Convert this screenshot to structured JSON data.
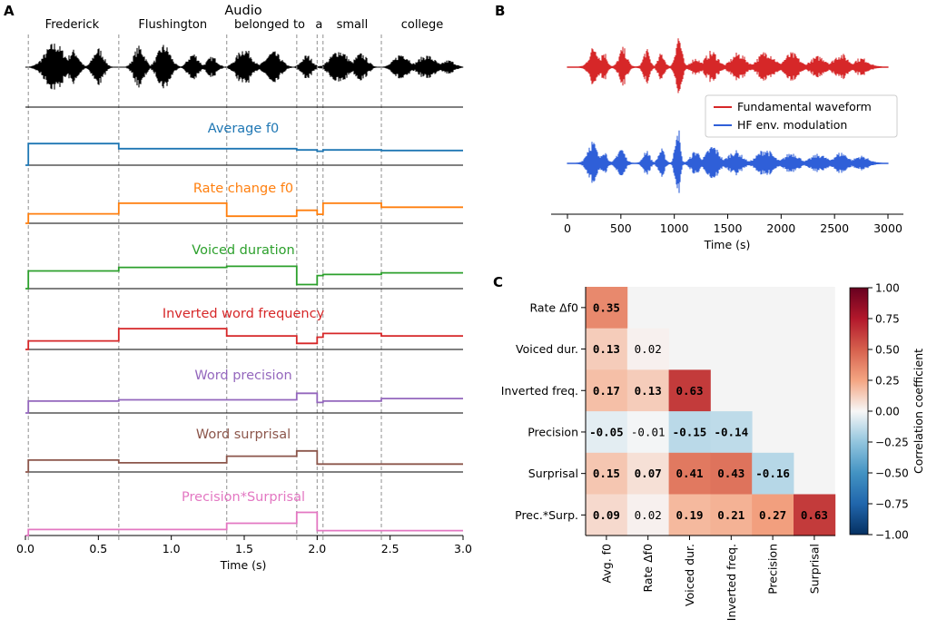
{
  "panels": {
    "a": "A",
    "b": "B",
    "c": "C"
  },
  "chart_data": [
    {
      "id": "panel-a",
      "type": "line",
      "title": "Audio",
      "xlabel": "Time (s)",
      "xlim": [
        0,
        3.0
      ],
      "xticks": [
        "0.0",
        "0.5",
        "1.0",
        "1.5",
        "2.0",
        "2.5",
        "3.0"
      ],
      "xtick_values": [
        0,
        0.5,
        1.0,
        1.5,
        2.0,
        2.5,
        3.0
      ],
      "boundaries": [
        0.02,
        0.64,
        1.38,
        1.86,
        2.0,
        2.04,
        2.44
      ],
      "words": [
        {
          "text": "Frederick",
          "t": 0.32
        },
        {
          "text": "Flushington",
          "t": 1.01
        },
        {
          "text": "belonged",
          "t": 1.62
        },
        {
          "text": "to",
          "t": 1.92
        },
        {
          "text": "a",
          "t": 2.0
        },
        {
          "text": "small",
          "t": 2.24
        },
        {
          "text": "college",
          "t": 2.72
        }
      ],
      "series": [
        {
          "name": "Average f0",
          "color": "#1f77b4",
          "steps": [
            0.0,
            0.85,
            0.65,
            0.65,
            0.6,
            0.55,
            0.6,
            0.58
          ]
        },
        {
          "name": "Rate change f0",
          "color": "#ff7f0e",
          "steps": [
            0.0,
            0.4,
            0.85,
            0.3,
            0.55,
            0.38,
            0.85,
            0.68
          ]
        },
        {
          "name": "Voiced duration",
          "color": "#2ca02c",
          "steps": [
            0.0,
            0.65,
            0.78,
            0.82,
            0.15,
            0.48,
            0.52,
            0.58
          ]
        },
        {
          "name": "Inverted word frequency",
          "color": "#d62728",
          "steps": [
            0.0,
            0.35,
            0.85,
            0.55,
            0.25,
            0.5,
            0.65,
            0.55
          ]
        },
        {
          "name": "Word precision",
          "color": "#9467bd",
          "steps": [
            0.0,
            0.45,
            0.5,
            0.5,
            0.75,
            0.4,
            0.45,
            0.55
          ]
        },
        {
          "name": "Word surprisal",
          "color": "#8c564b",
          "steps": [
            0.0,
            0.45,
            0.35,
            0.6,
            0.8,
            0.3,
            0.3,
            0.3
          ]
        },
        {
          "name": "Precision*Surprisal",
          "color": "#e377c2",
          "steps": [
            0.0,
            0.22,
            0.22,
            0.45,
            0.85,
            0.18,
            0.18,
            0.18
          ]
        }
      ]
    },
    {
      "id": "panel-b",
      "type": "line",
      "xlabel": "Time (s)",
      "xlim": [
        0,
        3000
      ],
      "xticks": [
        "0",
        "500",
        "1000",
        "1500",
        "2000",
        "2500",
        "3000"
      ],
      "xtick_values": [
        0,
        500,
        1000,
        1500,
        2000,
        2500,
        3000
      ],
      "series": [
        {
          "name": "Fundamental waveform",
          "color": "#d62728"
        },
        {
          "name": "HF env. modulation",
          "color": "#2f5fd8"
        }
      ],
      "legend": "right"
    },
    {
      "id": "panel-c",
      "type": "heatmap",
      "rows": [
        "Rate Δf0",
        "Voiced dur.",
        "Inverted freq.",
        "Precision",
        "Surprisal",
        "Prec.*Surp."
      ],
      "columns": [
        "Avg. f0",
        "Rate Δf0",
        "Voiced dur.",
        "Inverted freq.",
        "Precision",
        "Surprisal"
      ],
      "values": [
        [
          0.35,
          null,
          null,
          null,
          null,
          null
        ],
        [
          0.13,
          0.02,
          null,
          null,
          null,
          null
        ],
        [
          0.17,
          0.13,
          0.63,
          null,
          null,
          null
        ],
        [
          -0.05,
          -0.01,
          -0.15,
          -0.14,
          null,
          null
        ],
        [
          0.15,
          0.07,
          0.41,
          0.43,
          -0.16,
          null
        ],
        [
          0.09,
          0.02,
          0.19,
          0.21,
          0.27,
          0.63
        ]
      ],
      "labels": [
        [
          "0.35",
          "",
          "",
          "",
          "",
          ""
        ],
        [
          "0.13",
          "0.02",
          "",
          "",
          "",
          ""
        ],
        [
          "0.17",
          "0.13",
          "0.63",
          "",
          "",
          ""
        ],
        [
          "-0.05",
          "-0.01",
          "-0.15",
          "-0.14",
          "",
          ""
        ],
        [
          "0.15",
          "0.07",
          "0.41",
          "0.43",
          "-0.16",
          ""
        ],
        [
          "0.09",
          "0.02",
          "0.19",
          "0.21",
          "0.27",
          "0.63"
        ]
      ],
      "bold": [
        [
          true,
          false,
          false,
          false,
          false,
          false
        ],
        [
          true,
          false,
          false,
          false,
          false,
          false
        ],
        [
          true,
          true,
          true,
          false,
          false,
          false
        ],
        [
          true,
          false,
          true,
          true,
          false,
          false
        ],
        [
          true,
          true,
          true,
          true,
          true,
          false
        ],
        [
          true,
          false,
          true,
          true,
          true,
          true
        ]
      ],
      "colorbar": {
        "label": "Correlation coefficient",
        "range": [
          -1.0,
          1.0
        ],
        "ticks": [
          "1.00",
          "0.75",
          "0.50",
          "0.25",
          "0.00",
          "−0.25",
          "−0.50",
          "−0.75",
          "−1.00"
        ],
        "tick_values": [
          1.0,
          0.75,
          0.5,
          0.25,
          0.0,
          -0.25,
          -0.5,
          -0.75,
          -1.0
        ]
      }
    }
  ]
}
